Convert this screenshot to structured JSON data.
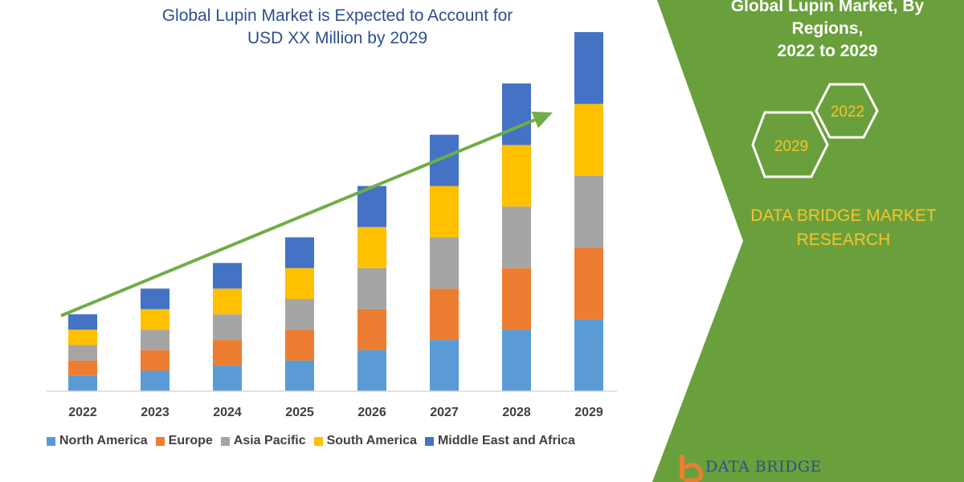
{
  "header": {
    "title_line1": "Global Lupin Market is Expected to Account for",
    "title_line2": "USD XX Million by 2029"
  },
  "side_panel": {
    "title_line1": "Global Lupin Market, By Regions,",
    "title_line2": "2022 to 2029",
    "hex_start": "2022",
    "hex_end": "2029",
    "brand_line1": "DATA BRIDGE MARKET",
    "brand_line2": "RESEARCH",
    "panel_color": "#6aa03c"
  },
  "logo": {
    "text": "DATA BRIDGE"
  },
  "chart_data": {
    "type": "bar",
    "stacked": true,
    "categories": [
      "2022",
      "2023",
      "2024",
      "2025",
      "2026",
      "2027",
      "2028",
      "2029"
    ],
    "series": [
      {
        "name": "North America",
        "color": "#5b9bd5",
        "values": [
          3,
          4,
          5,
          6,
          8,
          10,
          12,
          14
        ]
      },
      {
        "name": "Europe",
        "color": "#ed7d31",
        "values": [
          3,
          4,
          5,
          6,
          8,
          10,
          12,
          14
        ]
      },
      {
        "name": "Asia Pacific",
        "color": "#a5a5a5",
        "values": [
          3,
          4,
          5,
          6,
          8,
          10,
          12,
          14
        ]
      },
      {
        "name": "South America",
        "color": "#ffc000",
        "values": [
          3,
          4,
          5,
          6,
          8,
          10,
          12,
          14
        ]
      },
      {
        "name": "Middle East and Africa",
        "color": "#4472c4",
        "values": [
          3,
          4,
          5,
          6,
          8,
          10,
          12,
          14
        ]
      }
    ],
    "ylim": [
      0,
      70
    ],
    "grid": false,
    "legend": "bottom",
    "trend_arrow_color": "#70ad47"
  }
}
